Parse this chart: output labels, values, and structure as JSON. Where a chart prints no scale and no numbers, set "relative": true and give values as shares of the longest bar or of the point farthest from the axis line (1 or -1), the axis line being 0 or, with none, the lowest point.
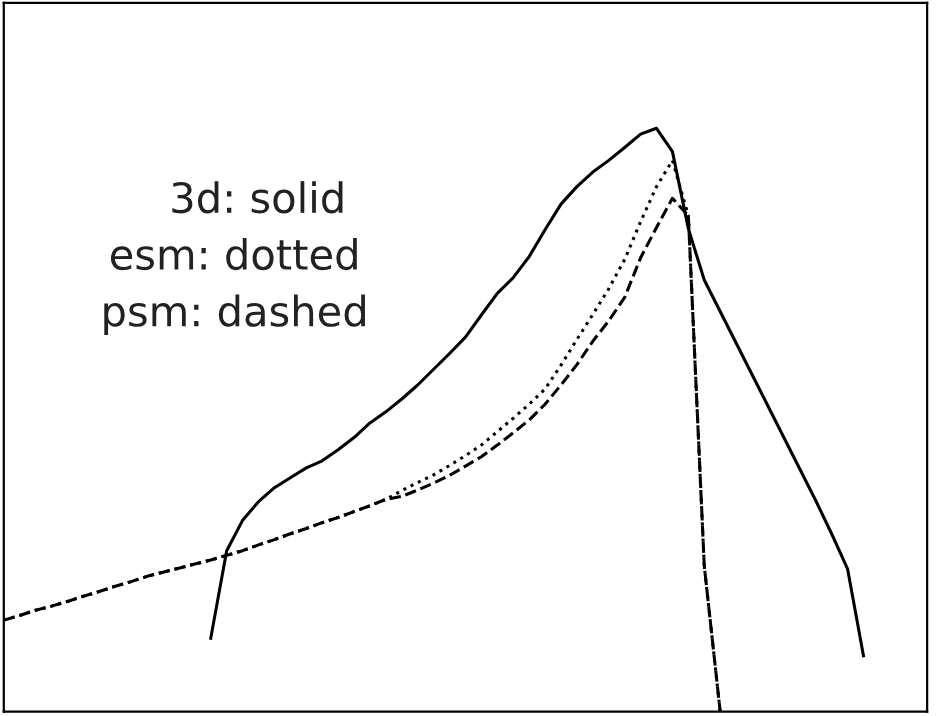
{
  "chart_data": {
    "type": "line",
    "relative": true,
    "grid": false,
    "marker": "none",
    "categories": [
      null,
      null,
      null,
      null,
      null,
      null,
      null,
      null,
      null,
      null,
      null,
      null,
      null,
      null,
      null,
      null,
      null,
      null,
      null,
      null,
      null,
      null,
      null,
      null,
      null,
      null,
      null,
      null,
      null,
      null,
      null,
      null,
      null,
      null,
      null,
      null,
      null,
      null,
      null,
      null,
      null,
      null,
      null,
      null,
      null,
      null,
      null,
      null,
      null,
      null,
      null,
      null,
      null,
      null,
      null,
      null,
      null,
      null
    ],
    "annotations": [
      "3d: solid",
      "esm: dotted",
      "psm: dashed"
    ],
    "series": [
      {
        "color": "#000000",
        "line_style": "solid",
        "values": [
          null,
          null,
          null,
          null,
          null,
          null,
          null,
          null,
          null,
          null,
          null,
          null,
          null,
          0.126,
          0.276,
          0.328,
          0.36,
          0.384,
          0.401,
          0.418,
          0.43,
          0.449,
          0.47,
          0.495,
          0.514,
          0.536,
          0.56,
          0.587,
          0.614,
          0.642,
          0.68,
          0.717,
          0.744,
          0.78,
          0.826,
          0.87,
          0.9,
          0.925,
          0.945,
          0.967,
          0.99,
          1.0,
          0.96,
          0.828,
          0.74,
          0.686,
          0.632,
          0.578,
          0.524,
          0.47,
          0.416,
          0.362,
          0.305,
          0.245,
          0.096,
          null,
          null,
          null
        ]
      },
      {
        "color": "#000000",
        "line_style": "dotted",
        "values": [
          0.157,
          0.165,
          0.174,
          0.181,
          0.189,
          0.198,
          0.206,
          0.215,
          0.223,
          0.232,
          0.239,
          0.246,
          0.253,
          0.26,
          0.268,
          0.276,
          0.286,
          0.295,
          0.305,
          0.314,
          0.324,
          0.333,
          0.343,
          0.353,
          0.364,
          0.379,
          0.393,
          0.406,
          0.422,
          0.439,
          0.457,
          0.48,
          0.503,
          0.527,
          0.553,
          0.594,
          0.638,
          0.681,
          0.725,
          0.775,
          0.84,
          0.9,
          0.945,
          0.85,
          0.25,
          0.0,
          null,
          null,
          null,
          null,
          null,
          null,
          null,
          null,
          null,
          null,
          null,
          null
        ]
      },
      {
        "color": "#000000",
        "line_style": "dashed",
        "values": [
          0.157,
          0.165,
          0.174,
          0.181,
          0.189,
          0.198,
          0.206,
          0.215,
          0.223,
          0.232,
          0.239,
          0.246,
          0.253,
          0.26,
          0.268,
          0.276,
          0.286,
          0.295,
          0.305,
          0.314,
          0.324,
          0.333,
          0.343,
          0.353,
          0.364,
          0.369,
          0.38,
          0.392,
          0.405,
          0.421,
          0.437,
          0.457,
          0.478,
          0.5,
          0.527,
          0.56,
          0.595,
          0.635,
          0.67,
          0.71,
          0.778,
          0.83,
          0.88,
          0.85,
          0.25,
          0.0,
          null,
          null,
          null,
          null,
          null,
          null,
          null,
          null,
          null,
          null,
          null,
          null
        ]
      }
    ]
  }
}
